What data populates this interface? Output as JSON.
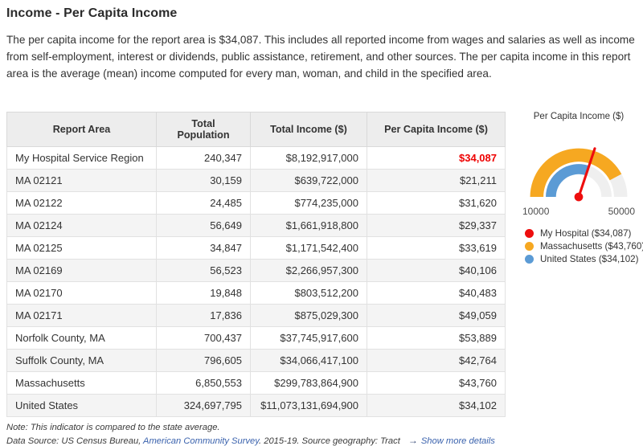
{
  "page": {
    "title": "Income - Per Capita Income",
    "description": "The per capita income for the report area is $34,087. This includes all reported income from wages and salaries as well as income from self-employment, interest or dividends, public assistance, retirement, and other sources. The per capita income in this report area is the average (mean) income computed for every man, woman, and child in the specified area."
  },
  "table": {
    "headers": [
      "Report Area",
      "Total Population",
      "Total Income ($)",
      "Per Capita Income ($)"
    ],
    "rows": [
      {
        "area": "My Hospital Service Region",
        "population": "240,347",
        "income": "$8,192,917,000",
        "per_capita": "$34,087",
        "highlight": true
      },
      {
        "area": "MA 02121",
        "population": "30,159",
        "income": "$639,722,000",
        "per_capita": "$21,211",
        "highlight": false
      },
      {
        "area": "MA 02122",
        "population": "24,485",
        "income": "$774,235,000",
        "per_capita": "$31,620",
        "highlight": false
      },
      {
        "area": "MA 02124",
        "population": "56,649",
        "income": "$1,661,918,800",
        "per_capita": "$29,337",
        "highlight": false
      },
      {
        "area": "MA 02125",
        "population": "34,847",
        "income": "$1,171,542,400",
        "per_capita": "$33,619",
        "highlight": false
      },
      {
        "area": "MA 02169",
        "population": "56,523",
        "income": "$2,266,957,300",
        "per_capita": "$40,106",
        "highlight": false
      },
      {
        "area": "MA 02170",
        "population": "19,848",
        "income": "$803,512,200",
        "per_capita": "$40,483",
        "highlight": false
      },
      {
        "area": "MA 02171",
        "population": "17,836",
        "income": "$875,029,300",
        "per_capita": "$49,059",
        "highlight": false
      },
      {
        "area": "Norfolk County, MA",
        "population": "700,437",
        "income": "$37,745,917,600",
        "per_capita": "$53,889",
        "highlight": false
      },
      {
        "area": "Suffolk County, MA",
        "population": "796,605",
        "income": "$34,066,417,100",
        "per_capita": "$42,764",
        "highlight": false
      },
      {
        "area": "Massachusetts",
        "population": "6,850,553",
        "income": "$299,783,864,900",
        "per_capita": "$43,760",
        "highlight": false
      },
      {
        "area": "United States",
        "population": "324,697,795",
        "income": "$11,073,131,694,900",
        "per_capita": "$34,102",
        "highlight": false
      }
    ]
  },
  "chart_data": {
    "type": "gauge",
    "title": "Per Capita Income ($)",
    "min": 10000,
    "max": 50000,
    "axis_labels": [
      "10000",
      "50000"
    ],
    "track_color": "#efefef",
    "needle": {
      "name": "My Hospital",
      "value": 34087,
      "color": "#ee0e0e"
    },
    "rings": [
      {
        "name": "Massachusetts",
        "value": 43760,
        "color": "#f6a821"
      },
      {
        "name": "United States",
        "value": 34102,
        "color": "#5b9bd5"
      }
    ],
    "legend": [
      {
        "label": "My Hospital ($34,087)",
        "color": "#ee0e0e"
      },
      {
        "label": "Massachusetts ($43,760)",
        "color": "#f6a821"
      },
      {
        "label": "United States ($34,102)",
        "color": "#5b9bd5"
      }
    ],
    "legend_position": "bottom"
  },
  "footer": {
    "note": "Note: This indicator is compared to the state average.",
    "data_source_prefix": "Data Source: US Census Bureau, ",
    "data_source_link": "American Community Survey",
    "data_source_suffix": ". 2015-19. Source geography: Tract",
    "arrow": "→",
    "more_details": "Show more details"
  }
}
